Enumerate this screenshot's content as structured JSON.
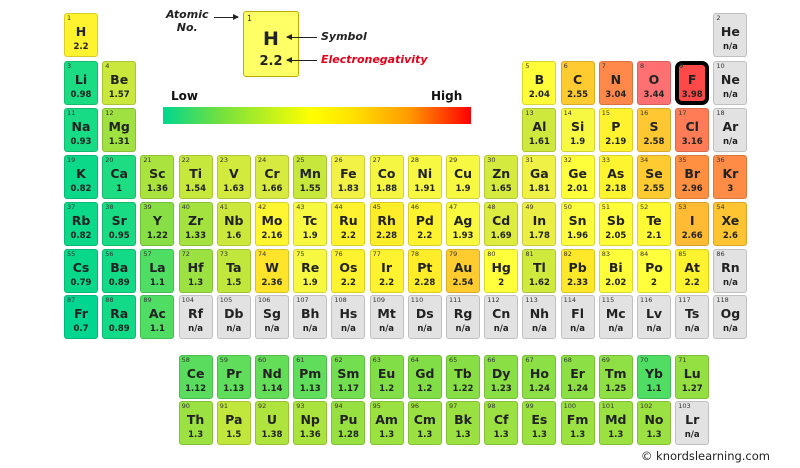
{
  "legend": {
    "number": "1",
    "symbol": "H",
    "electronegativity": "2.2",
    "atomic_label_line1": "Atomic",
    "atomic_label_line2": "No.",
    "symbol_label": "Symbol",
    "electronegativity_label": "Electronegativity"
  },
  "scale": {
    "low": "Low",
    "high": "High"
  },
  "credit": "© knordslearning.com",
  "highlighted": "F",
  "colors": {
    "na": "#e2e2e2",
    "highlight_border": "#000000",
    "electronegativity_label": "#e0001a"
  },
  "elements": [
    [
      "1",
      "H",
      "2.2"
    ],
    [
      "2",
      "He",
      "n/a"
    ],
    [
      "3",
      "Li",
      "0.98"
    ],
    [
      "4",
      "Be",
      "1.57"
    ],
    [
      "5",
      "B",
      "2.04"
    ],
    [
      "6",
      "C",
      "2.55"
    ],
    [
      "7",
      "N",
      "3.04"
    ],
    [
      "8",
      "O",
      "3.44"
    ],
    [
      "9",
      "F",
      "3.98"
    ],
    [
      "10",
      "Ne",
      "n/a"
    ],
    [
      "11",
      "Na",
      "0.93"
    ],
    [
      "12",
      "Mg",
      "1.31"
    ],
    [
      "13",
      "Al",
      "1.61"
    ],
    [
      "14",
      "Si",
      "1.9"
    ],
    [
      "15",
      "P",
      "2.19"
    ],
    [
      "16",
      "S",
      "2.58"
    ],
    [
      "17",
      "Cl",
      "3.16"
    ],
    [
      "18",
      "Ar",
      "n/a"
    ],
    [
      "19",
      "K",
      "0.82"
    ],
    [
      "20",
      "Ca",
      "1"
    ],
    [
      "21",
      "Sc",
      "1.36"
    ],
    [
      "22",
      "Ti",
      "1.54"
    ],
    [
      "23",
      "V",
      "1.63"
    ],
    [
      "24",
      "Cr",
      "1.66"
    ],
    [
      "25",
      "Mn",
      "1.55"
    ],
    [
      "26",
      "Fe",
      "1.83"
    ],
    [
      "27",
      "Co",
      "1.88"
    ],
    [
      "28",
      "Ni",
      "1.91"
    ],
    [
      "29",
      "Cu",
      "1.9"
    ],
    [
      "30",
      "Zn",
      "1.65"
    ],
    [
      "31",
      "Ga",
      "1.81"
    ],
    [
      "32",
      "Ge",
      "2.01"
    ],
    [
      "33",
      "As",
      "2.18"
    ],
    [
      "34",
      "Se",
      "2.55"
    ],
    [
      "35",
      "Br",
      "2.96"
    ],
    [
      "36",
      "Kr",
      "3"
    ],
    [
      "37",
      "Rb",
      "0.82"
    ],
    [
      "38",
      "Sr",
      "0.95"
    ],
    [
      "39",
      "Y",
      "1.22"
    ],
    [
      "40",
      "Zr",
      "1.33"
    ],
    [
      "41",
      "Nb",
      "1.6"
    ],
    [
      "42",
      "Mo",
      "2.16"
    ],
    [
      "43",
      "Tc",
      "1.9"
    ],
    [
      "44",
      "Ru",
      "2.2"
    ],
    [
      "45",
      "Rh",
      "2.28"
    ],
    [
      "46",
      "Pd",
      "2.2"
    ],
    [
      "47",
      "Ag",
      "1.93"
    ],
    [
      "48",
      "Cd",
      "1.69"
    ],
    [
      "49",
      "In",
      "1.78"
    ],
    [
      "50",
      "Sn",
      "1.96"
    ],
    [
      "51",
      "Sb",
      "2.05"
    ],
    [
      "52",
      "Te",
      "2.1"
    ],
    [
      "53",
      "I",
      "2.66"
    ],
    [
      "54",
      "Xe",
      "2.6"
    ],
    [
      "55",
      "Cs",
      "0.79"
    ],
    [
      "56",
      "Ba",
      "0.89"
    ],
    [
      "57",
      "La",
      "1.1"
    ],
    [
      "72",
      "Hf",
      "1.3"
    ],
    [
      "73",
      "Ta",
      "1.5"
    ],
    [
      "74",
      "W",
      "2.36"
    ],
    [
      "75",
      "Re",
      "1.9"
    ],
    [
      "76",
      "Os",
      "2.2"
    ],
    [
      "77",
      "Ir",
      "2.2"
    ],
    [
      "78",
      "Pt",
      "2.28"
    ],
    [
      "79",
      "Au",
      "2.54"
    ],
    [
      "80",
      "Hg",
      "2"
    ],
    [
      "81",
      "Tl",
      "1.62"
    ],
    [
      "82",
      "Pb",
      "2.33"
    ],
    [
      "83",
      "Bi",
      "2.02"
    ],
    [
      "84",
      "Po",
      "2"
    ],
    [
      "85",
      "At",
      "2.2"
    ],
    [
      "86",
      "Rn",
      "n/a"
    ],
    [
      "87",
      "Fr",
      "0.7"
    ],
    [
      "88",
      "Ra",
      "0.89"
    ],
    [
      "89",
      "Ac",
      "1.1"
    ],
    [
      "104",
      "Rf",
      "n/a"
    ],
    [
      "105",
      "Db",
      "n/a"
    ],
    [
      "106",
      "Sg",
      "n/a"
    ],
    [
      "107",
      "Bh",
      "n/a"
    ],
    [
      "108",
      "Hs",
      "n/a"
    ],
    [
      "109",
      "Mt",
      "n/a"
    ],
    [
      "110",
      "Ds",
      "n/a"
    ],
    [
      "111",
      "Rg",
      "n/a"
    ],
    [
      "112",
      "Cn",
      "n/a"
    ],
    [
      "113",
      "Nh",
      "n/a"
    ],
    [
      "114",
      "Fl",
      "n/a"
    ],
    [
      "115",
      "Mc",
      "n/a"
    ],
    [
      "116",
      "Lv",
      "n/a"
    ],
    [
      "117",
      "Ts",
      "n/a"
    ],
    [
      "118",
      "Og",
      "n/a"
    ],
    [
      "58",
      "Ce",
      "1.12"
    ],
    [
      "59",
      "Pr",
      "1.13"
    ],
    [
      "60",
      "Nd",
      "1.14"
    ],
    [
      "61",
      "Pm",
      "1.13"
    ],
    [
      "62",
      "Sm",
      "1.17"
    ],
    [
      "63",
      "Eu",
      "1.2"
    ],
    [
      "64",
      "Gd",
      "1.2"
    ],
    [
      "65",
      "Tb",
      "1.22"
    ],
    [
      "66",
      "Dy",
      "1.23"
    ],
    [
      "67",
      "Ho",
      "1.24"
    ],
    [
      "68",
      "Er",
      "1.24"
    ],
    [
      "69",
      "Tm",
      "1.25"
    ],
    [
      "70",
      "Yb",
      "1.1"
    ],
    [
      "71",
      "Lu",
      "1.27"
    ],
    [
      "90",
      "Th",
      "1.3"
    ],
    [
      "91",
      "Pa",
      "1.5"
    ],
    [
      "92",
      "U",
      "1.38"
    ],
    [
      "93",
      "Np",
      "1.36"
    ],
    [
      "94",
      "Pu",
      "1.28"
    ],
    [
      "95",
      "Am",
      "1.3"
    ],
    [
      "96",
      "Cm",
      "1.3"
    ],
    [
      "97",
      "Bk",
      "1.3"
    ],
    [
      "98",
      "Cf",
      "1.3"
    ],
    [
      "99",
      "Es",
      "1.3"
    ],
    [
      "100",
      "Fm",
      "1.3"
    ],
    [
      "101",
      "Md",
      "1.3"
    ],
    [
      "102",
      "No",
      "1.3"
    ],
    [
      "103",
      "Lr",
      "n/a"
    ]
  ]
}
